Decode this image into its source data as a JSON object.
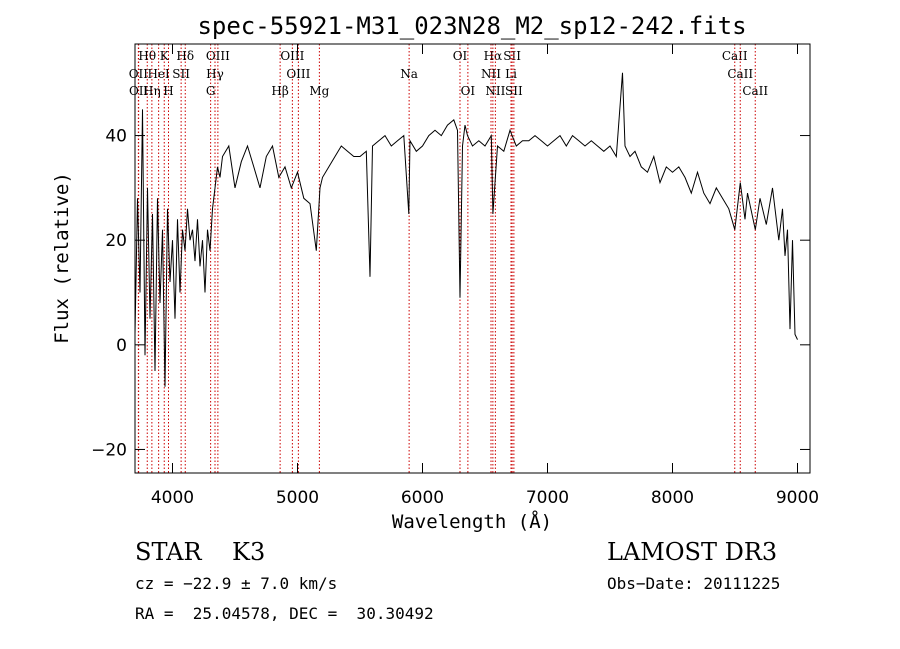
{
  "chart_data": {
    "type": "line",
    "title": "spec-55921-M31_023N28_M2_sp12-242.fits",
    "xlabel": "Wavelength (Å)",
    "ylabel": "Flux (relative)",
    "xlim": [
      3700,
      9100
    ],
    "ylim": [
      -24.5,
      57.5
    ],
    "xticks": [
      4000,
      5000,
      6000,
      7000,
      8000,
      9000
    ],
    "yticks": [
      -20,
      0,
      20,
      40
    ],
    "series": [
      {
        "name": "spectrum",
        "x": [
          3700,
          3720,
          3740,
          3760,
          3780,
          3800,
          3820,
          3840,
          3860,
          3880,
          3900,
          3920,
          3940,
          3960,
          3980,
          4000,
          4020,
          4040,
          4060,
          4080,
          4100,
          4120,
          4140,
          4160,
          4180,
          4200,
          4220,
          4240,
          4260,
          4280,
          4300,
          4320,
          4340,
          4360,
          4380,
          4400,
          4450,
          4500,
          4550,
          4600,
          4650,
          4700,
          4750,
          4800,
          4850,
          4900,
          4950,
          5000,
          5050,
          5100,
          5150,
          5180,
          5200,
          5250,
          5300,
          5350,
          5400,
          5450,
          5500,
          5550,
          5580,
          5600,
          5650,
          5700,
          5750,
          5800,
          5850,
          5890,
          5900,
          5950,
          6000,
          6050,
          6100,
          6150,
          6200,
          6250,
          6280,
          6300,
          6320,
          6340,
          6360,
          6400,
          6450,
          6500,
          6550,
          6563,
          6600,
          6650,
          6700,
          6750,
          6800,
          6850,
          6900,
          6950,
          7000,
          7050,
          7100,
          7150,
          7200,
          7250,
          7300,
          7350,
          7400,
          7450,
          7500,
          7550,
          7600,
          7620,
          7640,
          7660,
          7700,
          7750,
          7800,
          7850,
          7900,
          7950,
          8000,
          8050,
          8100,
          8150,
          8200,
          8250,
          8300,
          8350,
          8400,
          8450,
          8498,
          8542,
          8580,
          8600,
          8662,
          8700,
          8750,
          8800,
          8850,
          8880,
          8900,
          8920,
          8940,
          8960,
          8980,
          9000
        ],
        "values": [
          2,
          28,
          10,
          45,
          -2,
          30,
          5,
          25,
          -5,
          28,
          8,
          22,
          -8,
          26,
          12,
          20,
          5,
          24,
          10,
          22,
          18,
          26,
          20,
          22,
          16,
          24,
          15,
          20,
          10,
          22,
          18,
          26,
          30,
          34,
          32,
          36,
          38,
          30,
          35,
          38,
          34,
          30,
          36,
          38,
          32,
          34,
          30,
          33,
          28,
          27,
          18,
          30,
          32,
          34,
          36,
          38,
          37,
          36,
          36,
          37,
          13,
          38,
          39,
          40,
          38,
          39,
          40,
          25,
          39,
          37,
          38,
          40,
          41,
          40,
          42,
          43,
          41,
          9,
          38,
          42,
          40,
          38,
          39,
          38,
          40,
          25,
          38,
          37,
          41,
          38,
          39,
          39,
          40,
          39,
          38,
          39,
          40,
          38,
          40,
          39,
          38,
          39,
          38,
          37,
          38,
          36,
          52,
          38,
          37,
          36,
          37,
          34,
          33,
          36,
          31,
          34,
          33,
          34,
          32,
          29,
          33,
          29,
          27,
          30,
          28,
          26,
          22,
          31,
          24,
          29,
          22,
          28,
          23,
          30,
          20,
          26,
          17,
          22,
          3,
          20,
          2,
          1
        ]
      }
    ],
    "lines": [
      {
        "label": "Hθ",
        "wave": 3798,
        "row": 1
      },
      {
        "label": "K",
        "wave": 3934,
        "row": 1
      },
      {
        "label": "Hδ",
        "wave": 4102,
        "row": 1
      },
      {
        "label": "OIII",
        "wave": 4363,
        "row": 1
      },
      {
        "label": "OIII",
        "wave": 4959,
        "row": 1
      },
      {
        "label": "OI",
        "wave": 6300,
        "row": 1
      },
      {
        "label": "Hα",
        "wave": 6563,
        "row": 1
      },
      {
        "label": "SII",
        "wave": 6717,
        "row": 1
      },
      {
        "label": "CaII",
        "wave": 8498,
        "row": 1
      },
      {
        "label": "OII",
        "wave": 3727,
        "row": 2
      },
      {
        "label": "HeI",
        "wave": 3889,
        "row": 2
      },
      {
        "label": "SII",
        "wave": 4069,
        "row": 2
      },
      {
        "label": "Hγ",
        "wave": 4340,
        "row": 2
      },
      {
        "label": "OIII",
        "wave": 5007,
        "row": 2
      },
      {
        "label": "Na",
        "wave": 5893,
        "row": 2
      },
      {
        "label": "NII",
        "wave": 6548,
        "row": 2
      },
      {
        "label": "Li",
        "wave": 6708,
        "row": 2
      },
      {
        "label": "CaII",
        "wave": 8542,
        "row": 2
      },
      {
        "label": "OII",
        "wave": 3729,
        "row": 3
      },
      {
        "label": "Hη",
        "wave": 3835,
        "row": 3
      },
      {
        "label": "H",
        "wave": 3968,
        "row": 3
      },
      {
        "label": "G",
        "wave": 4305,
        "row": 3
      },
      {
        "label": "Hβ",
        "wave": 4861,
        "row": 3
      },
      {
        "label": "Mg",
        "wave": 5175,
        "row": 3
      },
      {
        "label": "OI",
        "wave": 6363,
        "row": 3
      },
      {
        "label": "NII",
        "wave": 6583,
        "row": 3
      },
      {
        "label": "SII",
        "wave": 6731,
        "row": 3
      },
      {
        "label": "CaII",
        "wave": 8662,
        "row": 3
      }
    ]
  },
  "info": {
    "class": "STAR    K3",
    "survey": "LAMOST DR3",
    "cz": "cz = −22.9 ± 7.0 km/s",
    "obs_date": "Obs−Date: 20111225",
    "coords": "RA =  25.04578, DEC =  30.30492"
  },
  "colors": {
    "spectrum": "#000000",
    "lines": "#cc0000",
    "axes": "#000000"
  }
}
